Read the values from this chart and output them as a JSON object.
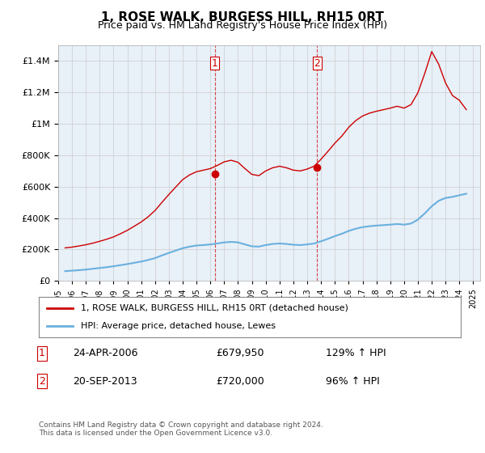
{
  "title": "1, ROSE WALK, BURGESS HILL, RH15 0RT",
  "subtitle": "Price paid vs. HM Land Registry's House Price Index (HPI)",
  "legend_line1": "1, ROSE WALK, BURGESS HILL, RH15 0RT (detached house)",
  "legend_line2": "HPI: Average price, detached house, Lewes",
  "transaction1_label": "1",
  "transaction1_date": "24-APR-2006",
  "transaction1_price": "£679,950",
  "transaction1_hpi": "129% ↑ HPI",
  "transaction2_label": "2",
  "transaction2_date": "20-SEP-2013",
  "transaction2_price": "£720,000",
  "transaction2_hpi": "96% ↑ HPI",
  "footer": "Contains HM Land Registry data © Crown copyright and database right 2024.\nThis data is licensed under the Open Government Licence v3.0.",
  "hpi_color": "#6ab0de",
  "price_color": "#cc0000",
  "vline_color": "#cc0000",
  "marker1_x": 2006.31,
  "marker1_y": 679950,
  "marker2_x": 2013.72,
  "marker2_y": 720000,
  "ylim": [
    0,
    1500000
  ],
  "xlim_start": 1995.0,
  "xlim_end": 2025.5,
  "background_color": "#e8f0f8",
  "plot_background": "#ffffff",
  "hpi_data": {
    "years": [
      1995.5,
      1996.0,
      1996.5,
      1997.0,
      1997.5,
      1998.0,
      1998.5,
      1999.0,
      1999.5,
      2000.0,
      2000.5,
      2001.0,
      2001.5,
      2002.0,
      2002.5,
      2003.0,
      2003.5,
      2004.0,
      2004.5,
      2005.0,
      2005.5,
      2006.0,
      2006.5,
      2007.0,
      2007.5,
      2008.0,
      2008.5,
      2009.0,
      2009.5,
      2010.0,
      2010.5,
      2011.0,
      2011.5,
      2012.0,
      2012.5,
      2013.0,
      2013.5,
      2014.0,
      2014.5,
      2015.0,
      2015.5,
      2016.0,
      2016.5,
      2017.0,
      2017.5,
      2018.0,
      2018.5,
      2019.0,
      2019.5,
      2020.0,
      2020.5,
      2021.0,
      2021.5,
      2022.0,
      2022.5,
      2023.0,
      2023.5,
      2024.0,
      2024.5
    ],
    "values": [
      62000,
      65000,
      68000,
      72000,
      77000,
      82000,
      87000,
      93000,
      100000,
      107000,
      115000,
      123000,
      133000,
      145000,
      162000,
      178000,
      193000,
      208000,
      218000,
      225000,
      228000,
      232000,
      238000,
      245000,
      248000,
      245000,
      232000,
      220000,
      218000,
      228000,
      235000,
      238000,
      235000,
      230000,
      228000,
      232000,
      238000,
      252000,
      268000,
      285000,
      300000,
      318000,
      332000,
      342000,
      348000,
      352000,
      355000,
      358000,
      362000,
      358000,
      365000,
      390000,
      430000,
      475000,
      510000,
      528000,
      535000,
      545000,
      555000
    ]
  },
  "price_hpi_data": {
    "years": [
      1995.5,
      1996.0,
      1996.5,
      1997.0,
      1997.5,
      1998.0,
      1998.5,
      1999.0,
      1999.5,
      2000.0,
      2000.5,
      2001.0,
      2001.5,
      2002.0,
      2002.5,
      2003.0,
      2003.5,
      2004.0,
      2004.5,
      2005.0,
      2005.5,
      2006.0,
      2006.5,
      2007.0,
      2007.5,
      2008.0,
      2008.5,
      2009.0,
      2009.5,
      2010.0,
      2010.5,
      2011.0,
      2011.5,
      2012.0,
      2012.5,
      2013.0,
      2013.5,
      2014.0,
      2014.5,
      2015.0,
      2015.5,
      2016.0,
      2016.5,
      2017.0,
      2017.5,
      2018.0,
      2018.5,
      2019.0,
      2019.5,
      2020.0,
      2020.5,
      2021.0,
      2021.5,
      2022.0,
      2022.5,
      2023.0,
      2023.5,
      2024.0,
      2024.5
    ],
    "values": [
      210000,
      215000,
      222000,
      230000,
      240000,
      252000,
      265000,
      280000,
      300000,
      322000,
      348000,
      375000,
      408000,
      448000,
      500000,
      550000,
      598000,
      645000,
      675000,
      695000,
      705000,
      715000,
      735000,
      758000,
      768000,
      755000,
      715000,
      678000,
      670000,
      700000,
      720000,
      730000,
      720000,
      705000,
      700000,
      712000,
      730000,
      775000,
      825000,
      877000,
      922000,
      978000,
      1020000,
      1050000,
      1068000,
      1080000,
      1090000,
      1100000,
      1112000,
      1100000,
      1122000,
      1198000,
      1322000,
      1460000,
      1380000,
      1260000,
      1180000,
      1150000,
      1090000
    ]
  }
}
